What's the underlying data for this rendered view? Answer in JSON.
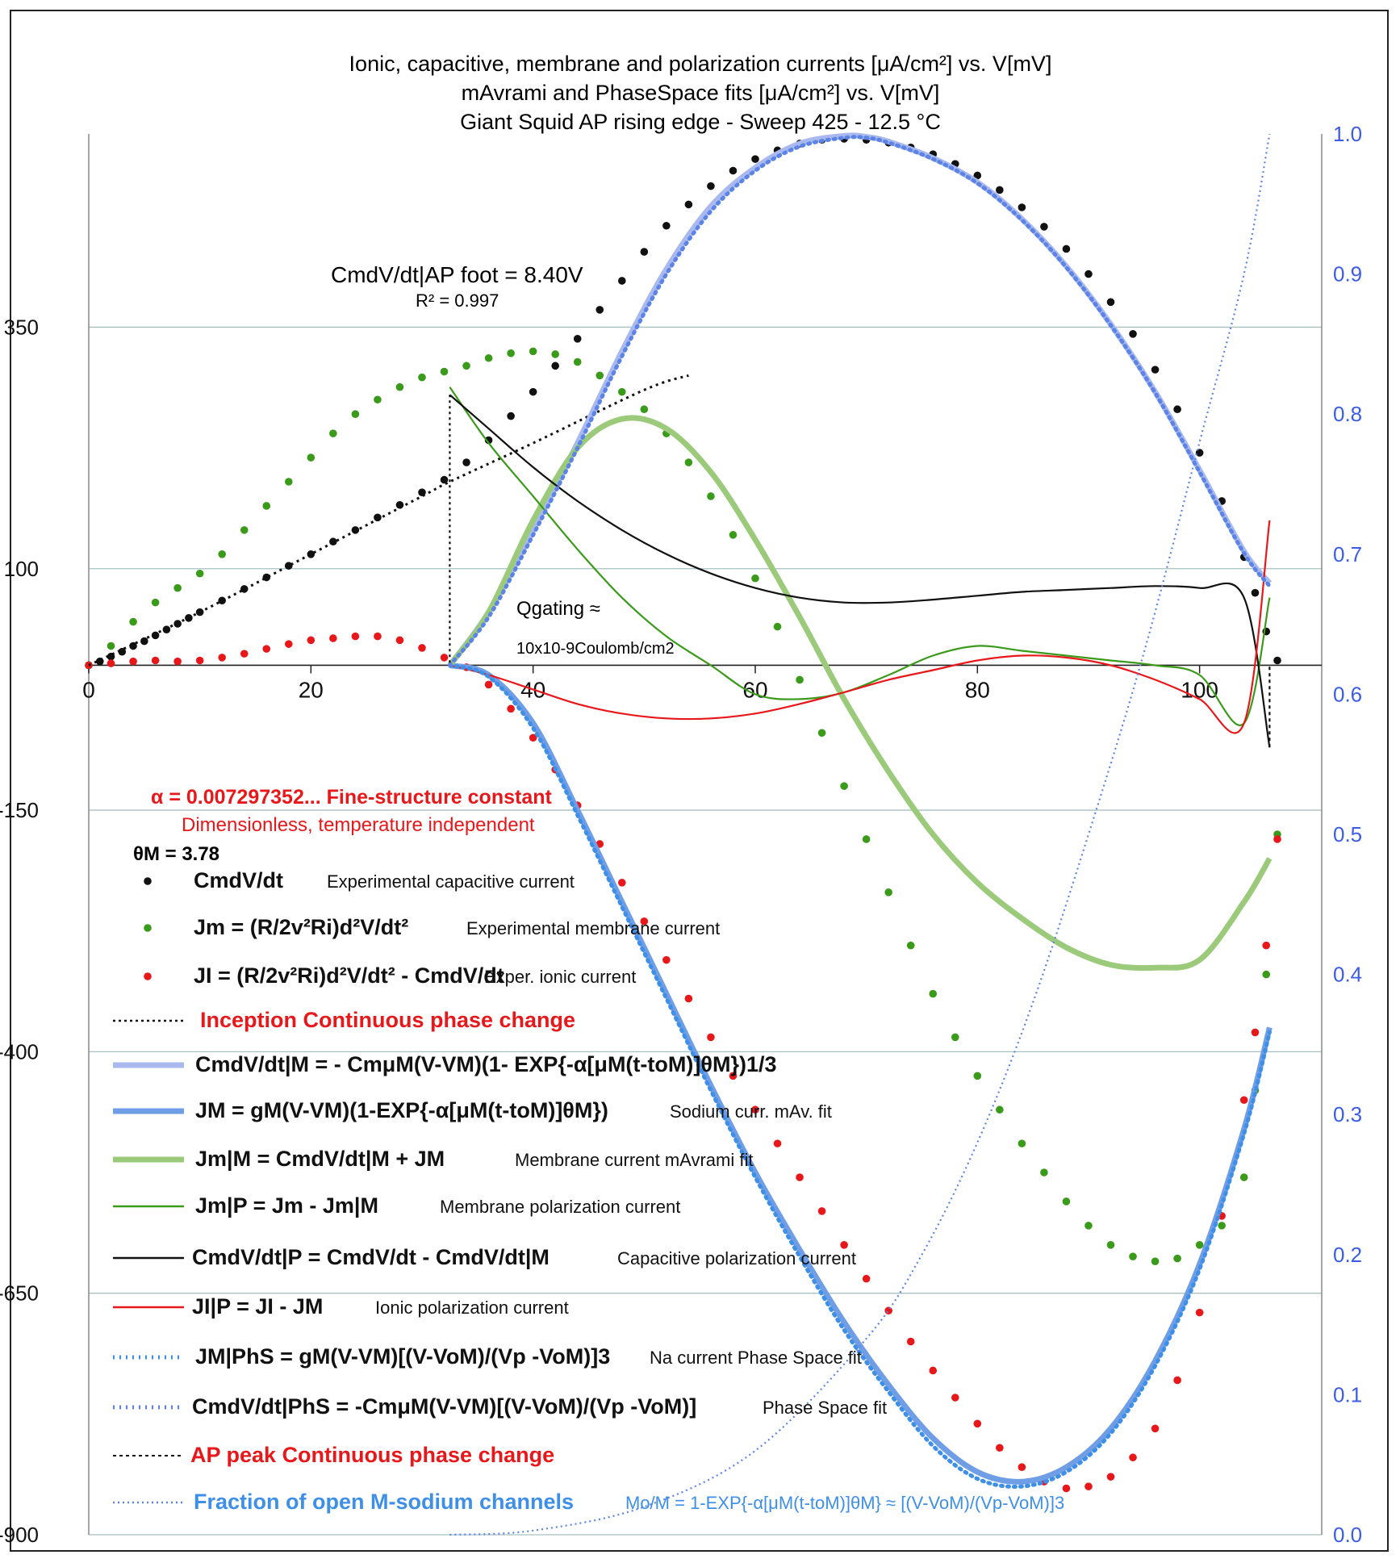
{
  "chart_data": {
    "type": "scatter",
    "title_lines": [
      "Ionic, capacitive, membrane and polarization currents [μA/cm²]  vs. V[mV]",
      "mAvrami and PhaseSpace fits [μA/cm²] vs. V[mV]",
      "Giant Squid AP rising edge - Sweep 425 - 12.5 °C"
    ],
    "xlim": [
      0,
      107
    ],
    "x_ticks": [
      "0",
      "20",
      "40",
      "60",
      "80",
      "100"
    ],
    "ylim_left": [
      -900,
      550
    ],
    "y_ticks_left": [
      "350",
      "100",
      "-150",
      "-400",
      "-650",
      "-900"
    ],
    "ylim_right": [
      0,
      1
    ],
    "y_ticks_right": [
      "0.0",
      "0.1",
      "0.2",
      "0.3",
      "0.4",
      "0.5",
      "0.6",
      "0.7",
      "0.8",
      "0.9",
      "1.0"
    ],
    "grid": "horizontal",
    "colors": {
      "black": "#111111",
      "green_dots": "#3a9a1a",
      "red": "#e8171a",
      "light_blue": "#a9b9ef",
      "mid_blue": "#6f9ee6",
      "green_fit": "#9bcb7a",
      "green_thin": "#3a9a1a",
      "blue_dots": "#3d8fe8",
      "right_axis": "#3b5ce8",
      "grid": "#a8c0c0"
    },
    "annotations": {
      "cm_foot": "CmdV/dt|AP foot = 8.40V",
      "r2": "R² = 0.997",
      "q_gating": "Qgating ≈",
      "q_value": "10x10-9Coulomb/cm2",
      "alpha": "α = 0.007297352... Fine-structure constant",
      "alpha_sub": "Dimensionless, temperature independent",
      "theta": "θM = 3.78"
    },
    "legend": [
      {
        "label": "CmdV/dt",
        "desc": "Experimental capacitive current"
      },
      {
        "label": "Jm = (R/2v²Ri)d²V/dt²",
        "desc": "Experimental membrane current"
      },
      {
        "label": "JI = (R/2v²Ri)d²V/dt² - CmdV/dt",
        "desc": "Exper. ionic current"
      },
      {
        "label": "Inception Continuous phase change",
        "desc": ""
      },
      {
        "label": "CmdV/dt|M = - CmμM(V-VM)(1- EXP{-α[μM(t-toM)]θM})1/3",
        "desc": ""
      },
      {
        "label": "JM = gM(V-VM)(1-EXP{-α[μM(t-toM)]θM})",
        "desc": "Sodium curr. mAv. fit"
      },
      {
        "label": "Jm|M = CmdV/dt|M + JM",
        "desc": "Membrane current mAvrami fit"
      },
      {
        "label": "Jm|P = Jm - Jm|M",
        "desc": "Membrane polarization current"
      },
      {
        "label": "CmdV/dt|P = CmdV/dt - CmdV/dt|M",
        "desc": "Capacitive polarization current"
      },
      {
        "label": "JI|P = JI - JM",
        "desc": "Ionic polarization current"
      },
      {
        "label": "JM|PhS = gM(V-VM)[(V-VoM)/(Vp -VoM)]3",
        "desc": "Na current Phase Space fit"
      },
      {
        "label": "CmdV/dt|PhS = -CmμM(V-VM)[(V-VoM)/(Vp -VoM)]",
        "desc": "Phase Space fit"
      },
      {
        "label": "AP peak Continuous phase change",
        "desc": ""
      },
      {
        "label": "Fraction of open M-sodium channels",
        "desc": "Mo/M = 1-EXP{-α[μM(t-toM)]θM} ≈ [(V-VoM)/(Vp-VoM)]3"
      }
    ],
    "series": [
      {
        "name": "CmdV/dt",
        "kind": "dots",
        "axis": "left",
        "x": [
          0,
          1,
          2,
          3,
          4,
          5,
          6,
          7,
          8,
          9,
          10,
          12,
          14,
          16,
          18,
          20,
          22,
          24,
          26,
          28,
          30,
          32,
          34,
          36,
          38,
          40,
          42,
          44,
          46,
          48,
          50,
          52,
          54,
          56,
          58,
          60,
          62,
          64,
          66,
          68,
          70,
          72,
          74,
          76,
          78,
          80,
          82,
          84,
          86,
          88,
          90,
          92,
          94,
          96,
          98,
          100,
          102,
          104,
          105,
          106,
          107
        ],
        "y": [
          0,
          4,
          9,
          14,
          20,
          25,
          31,
          37,
          43,
          49,
          55,
          67,
          79,
          91,
          103,
          115,
          128,
          140,
          153,
          166,
          179,
          192,
          210,
          233,
          258,
          283,
          310,
          338,
          368,
          398,
          428,
          455,
          477,
          496,
          512,
          524,
          533,
          540,
          544,
          545,
          544,
          541,
          536,
          529,
          519,
          507,
          492,
          474,
          454,
          431,
          405,
          376,
          343,
          306,
          265,
          220,
          170,
          112,
          75,
          35,
          5
        ]
      },
      {
        "name": "Jm",
        "kind": "dots",
        "axis": "left",
        "x": [
          0,
          2,
          4,
          6,
          8,
          10,
          12,
          14,
          16,
          18,
          20,
          22,
          24,
          26,
          28,
          30,
          32,
          34,
          36,
          38,
          40,
          42,
          44,
          46,
          48,
          50,
          52,
          54,
          56,
          58,
          60,
          62,
          64,
          66,
          68,
          70,
          72,
          74,
          76,
          78,
          80,
          82,
          84,
          86,
          88,
          90,
          92,
          94,
          96,
          98,
          100,
          102,
          104,
          105,
          106,
          107
        ],
        "y": [
          0,
          20,
          45,
          65,
          80,
          95,
          115,
          140,
          165,
          190,
          215,
          240,
          260,
          275,
          288,
          298,
          304,
          310,
          318,
          323,
          325,
          322,
          314,
          300,
          283,
          265,
          240,
          210,
          175,
          135,
          90,
          40,
          -15,
          -70,
          -125,
          -180,
          -235,
          -290,
          -340,
          -385,
          -425,
          -460,
          -495,
          -525,
          -555,
          -580,
          -600,
          -612,
          -617,
          -614,
          -600,
          -580,
          -530,
          -440,
          -320,
          -175
        ]
      },
      {
        "name": "JI",
        "kind": "dots",
        "axis": "left",
        "x": [
          0,
          2,
          4,
          6,
          8,
          10,
          12,
          14,
          16,
          18,
          20,
          22,
          24,
          26,
          28,
          30,
          32,
          34,
          36,
          38,
          40,
          42,
          44,
          46,
          48,
          50,
          52,
          54,
          56,
          58,
          60,
          62,
          64,
          66,
          68,
          70,
          72,
          74,
          76,
          78,
          80,
          82,
          84,
          86,
          88,
          90,
          92,
          94,
          96,
          98,
          100,
          102,
          104,
          105,
          106,
          107
        ],
        "y": [
          0,
          2,
          4,
          5,
          4,
          5,
          8,
          12,
          17,
          22,
          26,
          28,
          30,
          30,
          26,
          18,
          8,
          -2,
          -20,
          -45,
          -75,
          -108,
          -145,
          -185,
          -225,
          -265,
          -305,
          -345,
          -385,
          -425,
          -460,
          -495,
          -530,
          -565,
          -600,
          -635,
          -668,
          -700,
          -730,
          -758,
          -785,
          -810,
          -830,
          -845,
          -852,
          -850,
          -840,
          -820,
          -790,
          -740,
          -670,
          -570,
          -450,
          -380,
          -290,
          -180
        ]
      },
      {
        "name": "Inception Continuous phase change",
        "kind": "dotted_black",
        "axis": "left",
        "x": [
          0,
          10,
          20,
          30,
          32.5,
          40,
          50,
          54
        ],
        "y": [
          0,
          55,
          115,
          175,
          190,
          230,
          285,
          300
        ]
      },
      {
        "name": "CmdV/dt|M",
        "kind": "line_lightblue",
        "axis": "left",
        "x": [
          32.5,
          36,
          40,
          44,
          48,
          52,
          56,
          60,
          64,
          68,
          70,
          72,
          76,
          80,
          84,
          88,
          92,
          96,
          100,
          104,
          106.3
        ],
        "y": [
          0,
          55,
          140,
          230,
          325,
          410,
          475,
          515,
          540,
          548,
          547,
          542,
          525,
          500,
          462,
          413,
          353,
          283,
          202,
          118,
          85
        ]
      },
      {
        "name": "JM",
        "kind": "line_midblue",
        "axis": "left",
        "x": [
          32.5,
          36,
          40,
          44,
          48,
          52,
          56,
          60,
          64,
          68,
          72,
          76,
          80,
          84,
          88,
          92,
          96,
          100,
          104,
          106.3
        ],
        "y": [
          0,
          -10,
          -60,
          -150,
          -245,
          -340,
          -435,
          -525,
          -605,
          -680,
          -745,
          -800,
          -835,
          -845,
          -830,
          -790,
          -720,
          -620,
          -480,
          -375
        ]
      },
      {
        "name": "Jm|M",
        "kind": "line_greenfit",
        "axis": "left",
        "x": [
          32.5,
          36,
          40,
          44,
          48,
          52,
          56,
          60,
          64,
          68,
          72,
          76,
          80,
          84,
          88,
          92,
          96,
          100,
          104,
          106.3
        ],
        "y": [
          0,
          55,
          150,
          225,
          255,
          245,
          200,
          130,
          50,
          -35,
          -110,
          -175,
          -225,
          -262,
          -292,
          -310,
          -313,
          -305,
          -245,
          -200
        ]
      },
      {
        "name": "Jm|P",
        "kind": "line_greenthin",
        "axis": "left",
        "x": [
          32.5,
          36,
          40,
          44,
          48,
          52,
          56,
          60,
          64,
          68,
          72,
          76,
          80,
          84,
          88,
          92,
          96,
          100,
          104,
          106.3
        ],
        "y": [
          288,
          230,
          175,
          120,
          70,
          30,
          0,
          -30,
          -35,
          -28,
          -10,
          10,
          20,
          15,
          10,
          5,
          0,
          -10,
          -60,
          70
        ]
      },
      {
        "name": "CmdV/dt|P",
        "kind": "line_black",
        "axis": "left",
        "x": [
          32.5,
          36,
          40,
          44,
          48,
          52,
          56,
          60,
          64,
          68,
          72,
          76,
          80,
          84,
          88,
          92,
          96,
          100,
          104,
          106.3
        ],
        "y": [
          280,
          245,
          205,
          170,
          140,
          115,
          95,
          80,
          70,
          65,
          65,
          68,
          72,
          76,
          78,
          80,
          82,
          80,
          70,
          -85
        ]
      },
      {
        "name": "JI|P",
        "kind": "line_red",
        "axis": "left",
        "x": [
          32.5,
          36,
          40,
          44,
          48,
          52,
          56,
          60,
          64,
          68,
          72,
          76,
          80,
          84,
          88,
          92,
          96,
          100,
          104,
          106.3
        ],
        "y": [
          0,
          -10,
          -25,
          -40,
          -50,
          -55,
          -55,
          -50,
          -40,
          -28,
          -15,
          -5,
          5,
          10,
          8,
          0,
          -15,
          -35,
          -60,
          150
        ]
      },
      {
        "name": "JM|PhS",
        "kind": "dotted_blue",
        "axis": "left",
        "x": [
          32.5,
          36,
          40,
          44,
          48,
          52,
          56,
          60,
          64,
          68,
          72,
          76,
          80,
          84,
          88,
          92,
          96,
          100,
          104,
          106.3
        ],
        "y": [
          0,
          -12,
          -65,
          -155,
          -250,
          -345,
          -440,
          -530,
          -612,
          -688,
          -752,
          -808,
          -842,
          -850,
          -835,
          -795,
          -725,
          -625,
          -485,
          -380
        ]
      },
      {
        "name": "CmdV/dt|PhS",
        "kind": "dotted_blue2",
        "axis": "left",
        "x": [
          32.5,
          36,
          40,
          44,
          48,
          52,
          56,
          60,
          64,
          68,
          70,
          72,
          76,
          80,
          84,
          88,
          92,
          96,
          100,
          104,
          106.3
        ],
        "y": [
          0,
          50,
          135,
          225,
          320,
          405,
          470,
          512,
          537,
          546,
          546,
          541,
          524,
          499,
          461,
          412,
          352,
          282,
          200,
          116,
          82
        ]
      },
      {
        "name": "AP peak Continuous phase change",
        "kind": "dashed_black",
        "axis": "left",
        "x": [
          106.3,
          106.3
        ],
        "y": [
          -85,
          0
        ]
      },
      {
        "name": "Fraction of open M-sodium channels",
        "kind": "dotted_thin_blue",
        "axis": "right",
        "x": [
          32.5,
          40,
          50,
          60,
          70,
          75,
          80,
          85,
          90,
          95,
          100,
          104,
          106.3
        ],
        "y": [
          0,
          0.003,
          0.02,
          0.06,
          0.14,
          0.2,
          0.28,
          0.38,
          0.5,
          0.63,
          0.78,
          0.9,
          1.0
        ]
      }
    ]
  }
}
